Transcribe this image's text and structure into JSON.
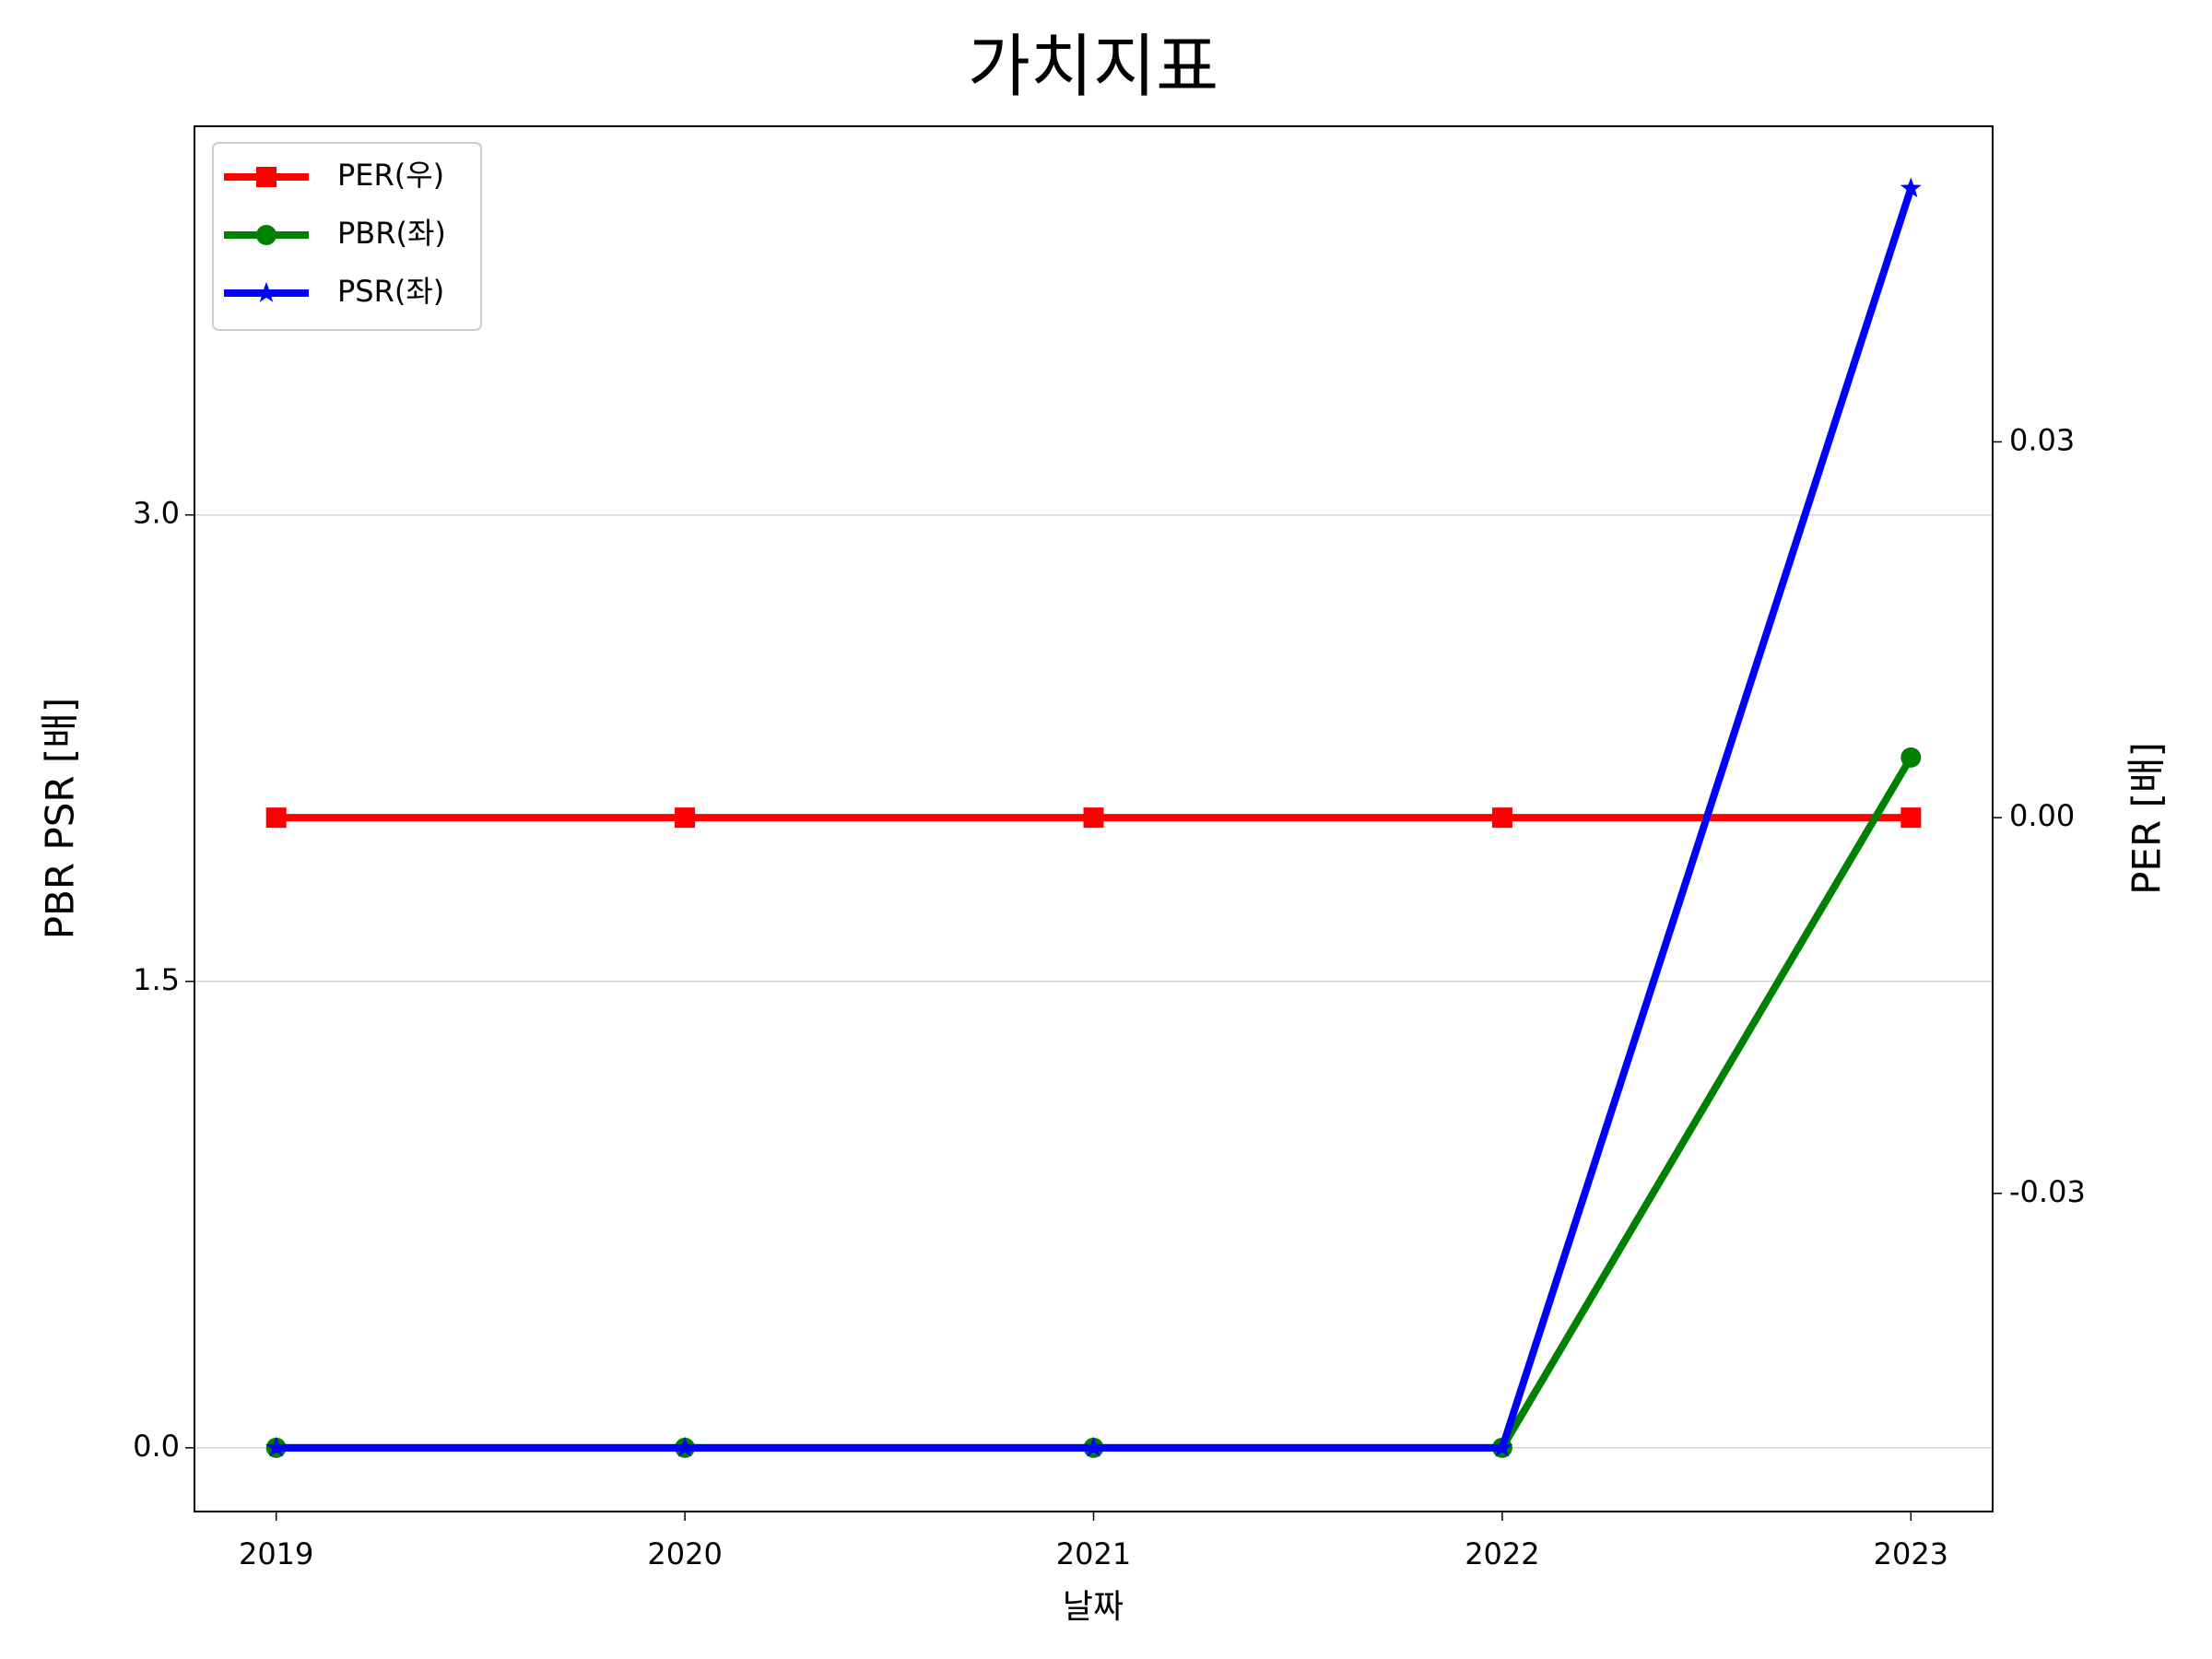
{
  "chart_data": {
    "type": "line",
    "title": "가치지표",
    "x_label": "날짜",
    "y_label": "PBR PSR [배]",
    "y2_label": "PER [배]",
    "categories": [
      "2019",
      "2020",
      "2021",
      "2022",
      "2023"
    ],
    "series": [
      {
        "name": "PER(우)",
        "color": "#ff0000",
        "marker": "square",
        "axis": "y2",
        "values": [
          0,
          0,
          0,
          0,
          0
        ]
      },
      {
        "name": "PBR(좌)",
        "color": "#008000",
        "marker": "circle",
        "values": [
          0,
          0,
          0,
          0,
          2.22
        ]
      },
      {
        "name": "PSR(좌)",
        "color": "#0000ff",
        "marker": "star",
        "values": [
          0,
          0,
          0,
          0,
          4.05
        ]
      }
    ],
    "ylim": [
      -0.205,
      4.25
    ],
    "yticks": [
      {
        "value": 0,
        "label": "0.0"
      },
      1.5,
      {
        "value": 3,
        "label": "3.0"
      }
    ],
    "y2lim": [
      -0.0554,
      0.0552
    ],
    "y2ticks": [
      -0.03,
      {
        "value": 0,
        "label": "0.00"
      },
      0.03
    ],
    "y_label_color": "#008000",
    "y2_label_color": "#ff0000",
    "grid": true,
    "legend": "upper-left"
  }
}
